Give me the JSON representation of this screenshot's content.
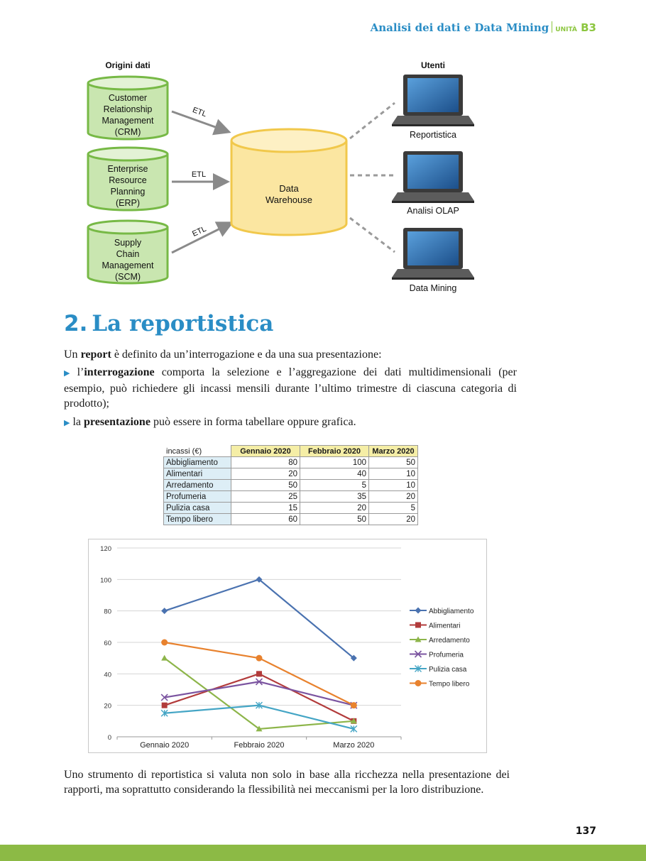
{
  "header": {
    "title": "Analisi dei dati e Data Mining",
    "unit_label": "UNITÀ",
    "unit_code": "B3"
  },
  "diagram": {
    "sources_title": "Origini dati",
    "users_title": "Utenti",
    "sources": [
      {
        "lines": [
          "Customer",
          "Relationship",
          "Management",
          "(CRM)"
        ],
        "etl": "ETL"
      },
      {
        "lines": [
          "Enterprise",
          "Resource",
          "Planning",
          "(ERP)"
        ],
        "etl": "ETL"
      },
      {
        "lines": [
          "Supply",
          "Chain",
          "Management",
          "(SCM)"
        ],
        "etl": "ETL"
      }
    ],
    "warehouse": [
      "Data",
      "Warehouse"
    ],
    "users": [
      "Reportistica",
      "Analisi OLAP",
      "Data Mining"
    ],
    "colors": {
      "source_fill": "#c9e6b0",
      "source_stroke": "#77b946",
      "warehouse_fill": "#fbe6a1",
      "warehouse_stroke": "#f1c84b"
    }
  },
  "section": {
    "number": "2.",
    "title": "La reportistica"
  },
  "intro": {
    "pre": "Un ",
    "bold": "report",
    "post": " è definito da un’interrogazione e da una sua presentazione:"
  },
  "bullets": [
    {
      "pre": "l’",
      "bold": "interrogazione",
      "post": " comporta la selezione e l’aggregazione dei dati multidimensionali (per esempio, può richiedere gli incassi mensili durante l’ultimo trimestre di ciascuna categoria di prodotto);"
    },
    {
      "pre": "la ",
      "bold": "presentazione",
      "post": " può essere in forma tabellare oppure grafica."
    }
  ],
  "table": {
    "corner": "incassi (€)",
    "headers": [
      "Gennaio 2020",
      "Febbraio 2020",
      "Marzo 2020"
    ],
    "rows": [
      {
        "label": "Abbigliamento",
        "values": [
          "80",
          "100",
          "50"
        ]
      },
      {
        "label": "Alimentari",
        "values": [
          "20",
          "40",
          "10"
        ]
      },
      {
        "label": "Arredamento",
        "values": [
          "50",
          "5",
          "10"
        ]
      },
      {
        "label": "Profumeria",
        "values": [
          "25",
          "35",
          "20"
        ]
      },
      {
        "label": "Pulizia casa",
        "values": [
          "15",
          "20",
          "5"
        ]
      },
      {
        "label": "Tempo libero",
        "values": [
          "60",
          "50",
          "20"
        ]
      }
    ]
  },
  "chart_data": {
    "type": "line",
    "title": "",
    "xlabel": "",
    "ylabel": "",
    "categories": [
      "Gennaio 2020",
      "Febbraio 2020",
      "Marzo 2020"
    ],
    "ylim": [
      0,
      120
    ],
    "yticks": [
      0,
      20,
      40,
      60,
      80,
      100,
      120
    ],
    "grid": true,
    "legend": "right",
    "series": [
      {
        "name": "Abbigliamento",
        "values": [
          80,
          100,
          50
        ],
        "color": "#4a72b0",
        "marker": "diamond"
      },
      {
        "name": "Alimentari",
        "values": [
          20,
          40,
          10
        ],
        "color": "#b23b3b",
        "marker": "square"
      },
      {
        "name": "Arredamento",
        "values": [
          50,
          5,
          10
        ],
        "color": "#8db54a",
        "marker": "triangle"
      },
      {
        "name": "Profumeria",
        "values": [
          25,
          35,
          20
        ],
        "color": "#7b54a0",
        "marker": "x"
      },
      {
        "name": "Pulizia casa",
        "values": [
          15,
          20,
          5
        ],
        "color": "#44a5c5",
        "marker": "star"
      },
      {
        "name": "Tempo libero",
        "values": [
          60,
          50,
          20
        ],
        "color": "#e8822e",
        "marker": "circle"
      }
    ]
  },
  "closing": "Uno strumento di reportistica si valuta non solo in base alla ricchezza nella presentazione dei rapporti, ma soprattutto considerando la flessibilità nei meccanismi per la loro distribuzione.",
  "page_number": "137"
}
